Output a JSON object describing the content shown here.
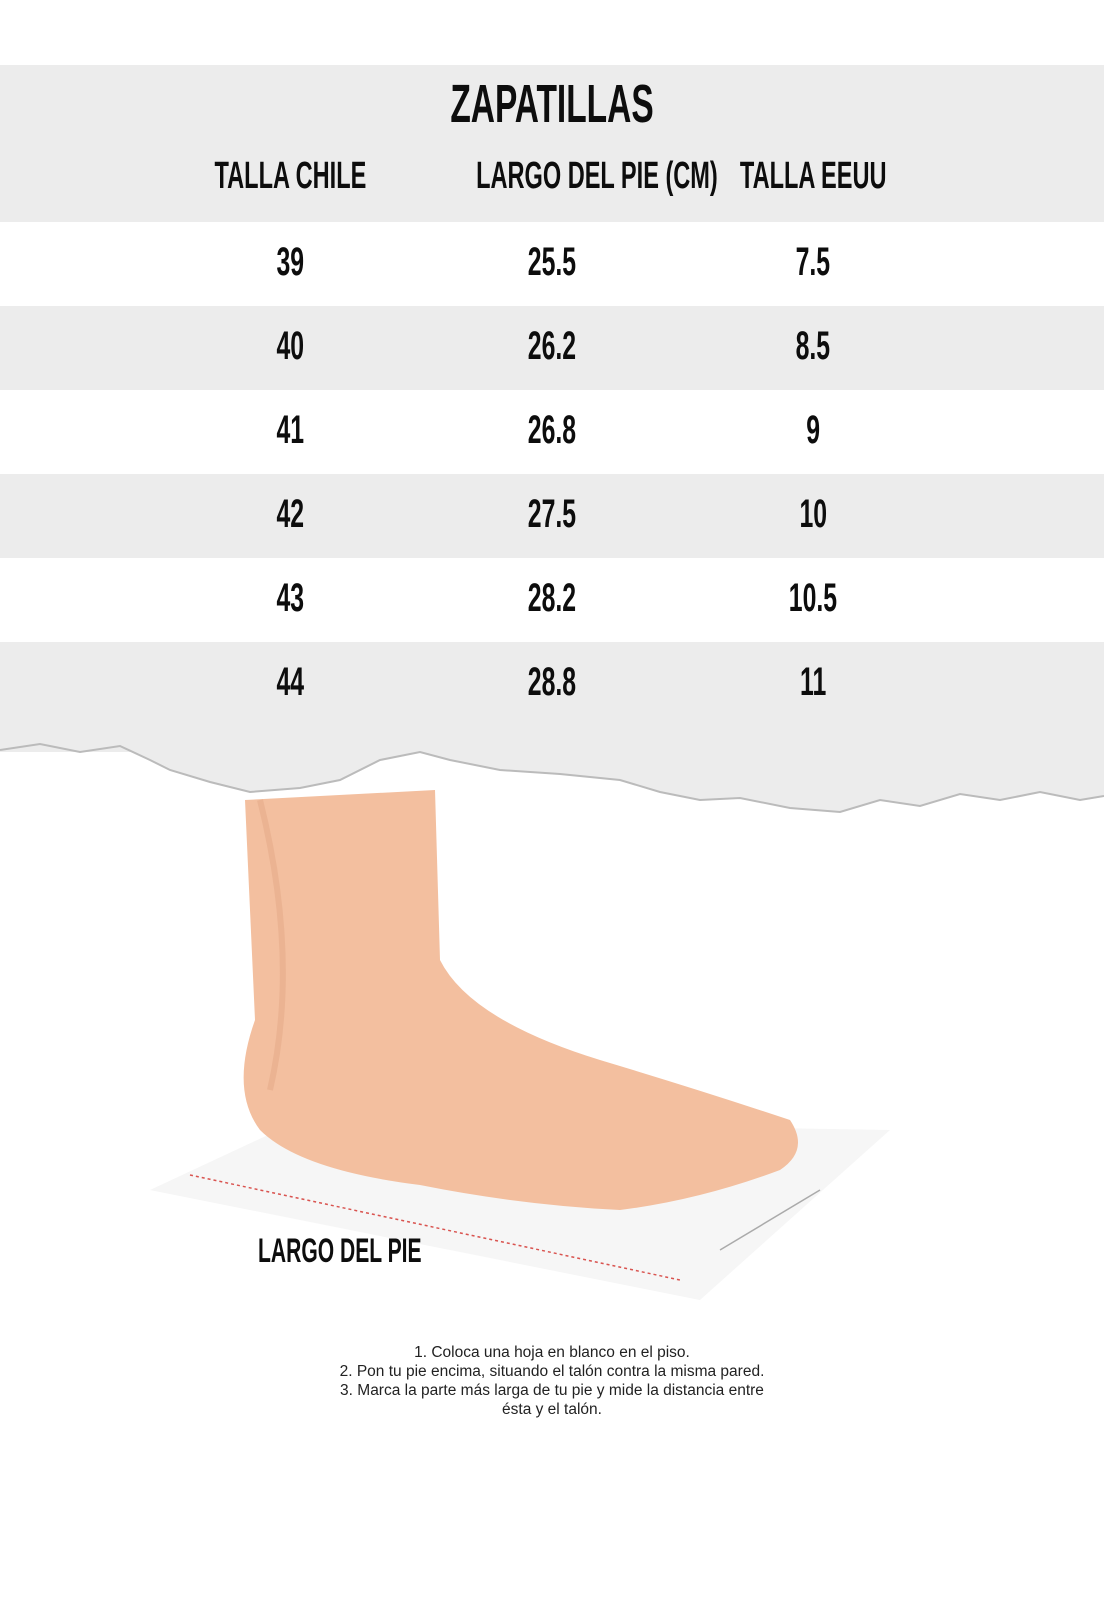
{
  "title": "ZAPATILLAS",
  "columns": [
    "TALLA CHILE",
    "LARGO DEL PIE (CM)",
    "TALLA EEUU"
  ],
  "rows": [
    [
      "39",
      "25.5",
      "7.5"
    ],
    [
      "40",
      "26.2",
      "8.5"
    ],
    [
      "41",
      "26.8",
      "9"
    ],
    [
      "42",
      "27.5",
      "10"
    ],
    [
      "43",
      "28.2",
      "10.5"
    ],
    [
      "44",
      "28.8",
      "11"
    ]
  ],
  "illustration": {
    "label": "LARGO DEL PIE",
    "measure_line_color": "#d9534f"
  },
  "instructions": [
    "1. Coloca una hoja en blanco en el piso.",
    "2. Pon tu pie encima, situando el talón contra la misma pared.",
    "3. Marca la parte más larga de tu pie y mide la distancia entre",
    "ésta y el talón."
  ],
  "colors": {
    "band": "#ececec",
    "text": "#0d0d0d"
  }
}
